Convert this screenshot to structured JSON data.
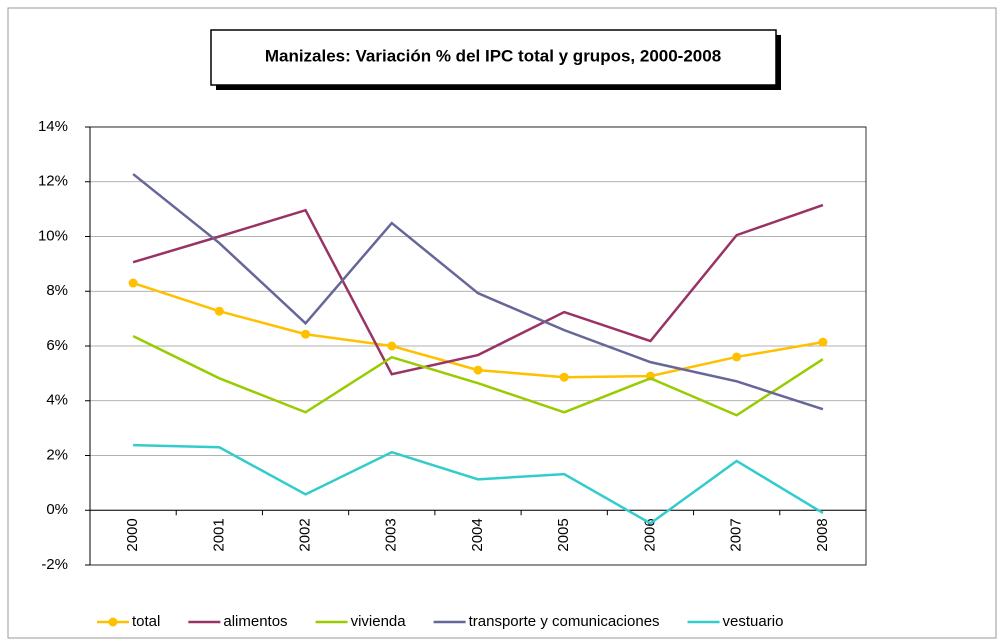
{
  "chart_data": {
    "type": "line",
    "title": "Manizales: Variación % del IPC total y grupos, 2000-2008",
    "categories": [
      "2000",
      "2001",
      "2002",
      "2003",
      "2004",
      "2005",
      "2006",
      "2007",
      "2008"
    ],
    "series": [
      {
        "name": "total",
        "color": "#ffc000",
        "marker": true,
        "values": [
          8.3,
          7.27,
          6.43,
          6.0,
          5.12,
          4.86,
          4.9,
          5.6,
          6.14
        ]
      },
      {
        "name": "alimentos",
        "color": "#993366",
        "values": [
          9.06,
          10.0,
          10.96,
          4.97,
          5.67,
          7.24,
          6.18,
          10.05,
          11.15
        ]
      },
      {
        "name": "vivienda",
        "color": "#99cc00",
        "values": [
          6.36,
          4.82,
          3.58,
          5.59,
          4.64,
          3.58,
          4.82,
          3.47,
          5.52
        ]
      },
      {
        "name": "transporte y comunicaciones",
        "color": "#666699",
        "values": [
          12.28,
          9.76,
          6.83,
          10.49,
          7.93,
          6.58,
          5.41,
          4.71,
          3.69
        ]
      },
      {
        "name": "vestuario",
        "color": "#33cccc",
        "values": [
          2.38,
          2.3,
          0.58,
          2.12,
          1.13,
          1.32,
          -0.48,
          1.8,
          -0.1
        ]
      }
    ],
    "ylim": [
      -2,
      14
    ],
    "yticks": [
      {
        "value": -2,
        "label": "-2%"
      },
      {
        "value": 0,
        "label": "0%"
      },
      {
        "value": 2,
        "label": "2%"
      },
      {
        "value": 4,
        "label": "4%"
      },
      {
        "value": 6,
        "label": "6%"
      },
      {
        "value": 8,
        "label": "8%"
      },
      {
        "value": 10,
        "label": "10%"
      },
      {
        "value": 12,
        "label": "12%"
      },
      {
        "value": 14,
        "label": "14%"
      }
    ],
    "grid": true,
    "legend": "bottom"
  }
}
